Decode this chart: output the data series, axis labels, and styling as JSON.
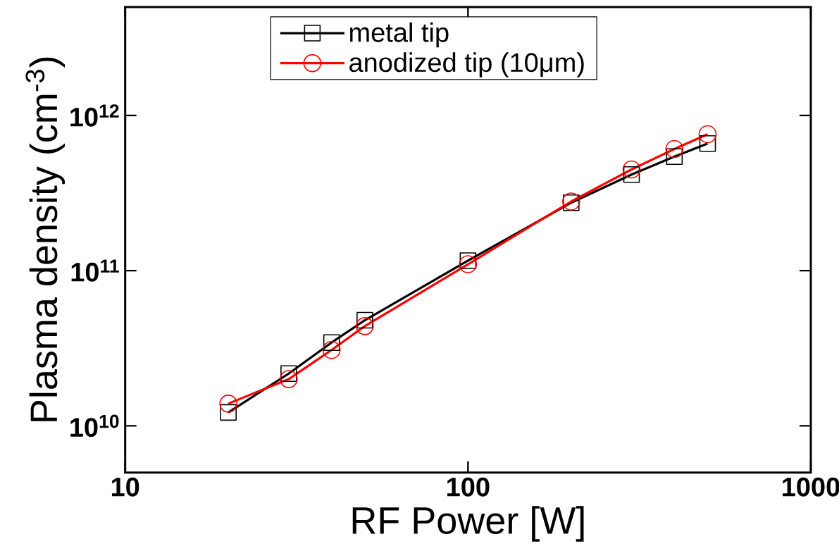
{
  "chart_data": {
    "type": "line",
    "xlabel": "RF Power [W]",
    "ylabel": "Plasma density (cm$^{-3}$)",
    "log": "xy",
    "x": [
      20,
      30,
      40,
      50,
      100,
      200,
      300,
      400,
      500
    ],
    "series": [
      {
        "name": "metal tip",
        "color": "#000000",
        "marker": "square",
        "values": [
          12200000000.0,
          21700000000.0,
          34400000000.0,
          47900000000.0,
          116000000000.0,
          274000000000.0,
          416000000000.0,
          543000000000.0,
          659000000000.0
        ]
      },
      {
        "name": "anodized tip (10μm)",
        "color": "#ff0000",
        "marker": "circle",
        "values": [
          13900000000.0,
          20000000000.0,
          30800000000.0,
          43900000000.0,
          110000000000.0,
          279000000000.0,
          449000000000.0,
          608000000000.0,
          757000000000.0
        ]
      }
    ],
    "xlim": [
      10,
      1000
    ],
    "ylim": [
      5000000000.0,
      5000000000000.0
    ],
    "xticks": [
      10,
      100,
      1000
    ],
    "yticks": [
      {
        "value": 10000000000.0,
        "label": "10$^{10}$"
      },
      {
        "value": 100000000000.0,
        "label": "10$^{11}$"
      },
      {
        "value": 1000000000000.0,
        "label": "10$^{12}$"
      }
    ],
    "line_style": "solid",
    "legend": "top",
    "grid": false
  }
}
